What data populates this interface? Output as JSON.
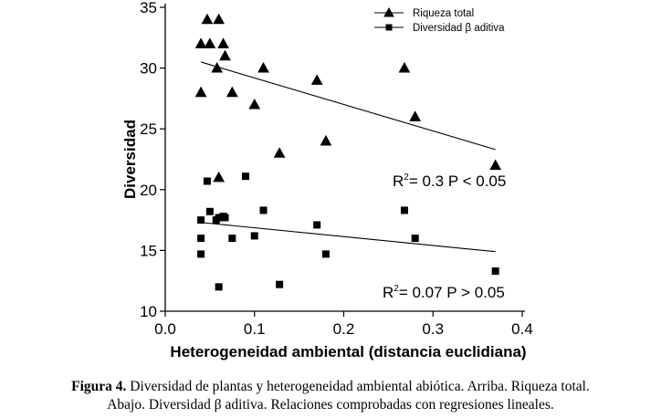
{
  "chart_data": {
    "type": "scatter",
    "xlabel": "Heterogeneidad ambiental (distancia euclidiana)",
    "ylabel": "Diversidad",
    "xlim": [
      0.0,
      0.4
    ],
    "ylim": [
      10,
      35
    ],
    "x_ticks": [
      "0.0",
      "0.1",
      "0.2",
      "0.3",
      "0.4"
    ],
    "y_ticks": [
      "10",
      "15",
      "20",
      "25",
      "30",
      "35"
    ],
    "grid": false,
    "legend_position": "top-right",
    "series": [
      {
        "name": "Riqueza total",
        "marker": "triangle",
        "points": [
          [
            0.04,
            32
          ],
          [
            0.04,
            28
          ],
          [
            0.047,
            34
          ],
          [
            0.05,
            32
          ],
          [
            0.058,
            30
          ],
          [
            0.06,
            34
          ],
          [
            0.06,
            21
          ],
          [
            0.065,
            32
          ],
          [
            0.067,
            31
          ],
          [
            0.075,
            28
          ],
          [
            0.1,
            27
          ],
          [
            0.11,
            30
          ],
          [
            0.128,
            23
          ],
          [
            0.17,
            29
          ],
          [
            0.18,
            24
          ],
          [
            0.268,
            30
          ],
          [
            0.28,
            26
          ],
          [
            0.37,
            22
          ]
        ],
        "trend": [
          [
            0.04,
            30.5
          ],
          [
            0.37,
            23.3
          ]
        ],
        "annotation": {
          "r2": "0.3",
          "p": "P < 0.05"
        }
      },
      {
        "name": "Diversidad β aditiva",
        "marker": "square",
        "points": [
          [
            0.04,
            17.5
          ],
          [
            0.04,
            16
          ],
          [
            0.04,
            14.7
          ],
          [
            0.047,
            20.7
          ],
          [
            0.05,
            18.2
          ],
          [
            0.057,
            17.5
          ],
          [
            0.06,
            17.7
          ],
          [
            0.06,
            12
          ],
          [
            0.065,
            17.8
          ],
          [
            0.067,
            17.7
          ],
          [
            0.075,
            16
          ],
          [
            0.09,
            21.1
          ],
          [
            0.1,
            16.2
          ],
          [
            0.11,
            18.3
          ],
          [
            0.128,
            12.2
          ],
          [
            0.17,
            17.1
          ],
          [
            0.18,
            14.7
          ],
          [
            0.268,
            18.3
          ],
          [
            0.28,
            16
          ],
          [
            0.37,
            13.3
          ]
        ],
        "trend": [
          [
            0.04,
            17.3
          ],
          [
            0.37,
            14.9
          ]
        ],
        "annotation": {
          "r2": "0.07",
          "p": "P > 0.05"
        }
      }
    ]
  },
  "caption": {
    "label": "Figura 4.",
    "line1": " Diversidad de plantas y heterogeneidad ambiental abiótica. Arriba. Riqueza total.",
    "line2": "Abajo. Diversidad β aditiva. Relaciones comprobadas con regresiones lineales."
  }
}
